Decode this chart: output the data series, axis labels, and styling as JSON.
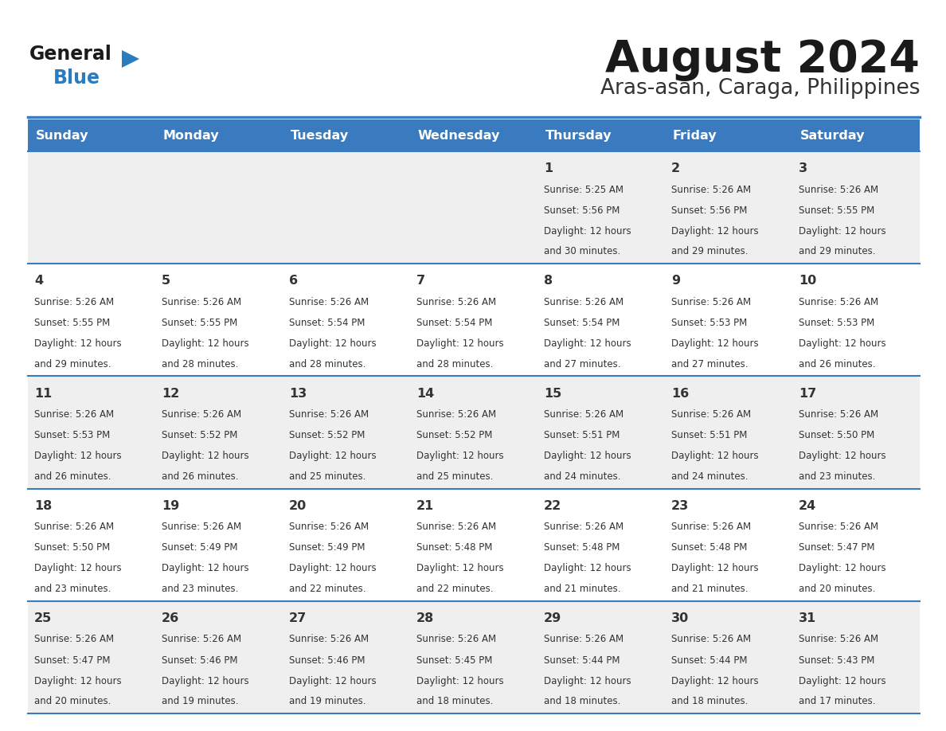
{
  "title": "August 2024",
  "subtitle": "Aras-asan, Caraga, Philippines",
  "header_bg": "#3a7bbf",
  "header_text_color": "#ffffff",
  "day_names": [
    "Sunday",
    "Monday",
    "Tuesday",
    "Wednesday",
    "Thursday",
    "Friday",
    "Saturday"
  ],
  "row_bg_odd": "#efefef",
  "row_bg_even": "#ffffff",
  "cell_text_color": "#333333",
  "day_num_color": "#333333",
  "line_color": "#3a7bbf",
  "title_color": "#1a1a1a",
  "subtitle_color": "#333333",
  "logo_general_color": "#1a1a1a",
  "logo_blue_color": "#2b7bbf",
  "logo_triangle_color": "#2b7bbf",
  "calendar_data": [
    [
      {
        "day": null,
        "sunrise": null,
        "sunset": null,
        "daylight": null
      },
      {
        "day": null,
        "sunrise": null,
        "sunset": null,
        "daylight": null
      },
      {
        "day": null,
        "sunrise": null,
        "sunset": null,
        "daylight": null
      },
      {
        "day": null,
        "sunrise": null,
        "sunset": null,
        "daylight": null
      },
      {
        "day": 1,
        "sunrise": "5:25 AM",
        "sunset": "5:56 PM",
        "daylight": "12 hours\nand 30 minutes."
      },
      {
        "day": 2,
        "sunrise": "5:26 AM",
        "sunset": "5:56 PM",
        "daylight": "12 hours\nand 29 minutes."
      },
      {
        "day": 3,
        "sunrise": "5:26 AM",
        "sunset": "5:55 PM",
        "daylight": "12 hours\nand 29 minutes."
      }
    ],
    [
      {
        "day": 4,
        "sunrise": "5:26 AM",
        "sunset": "5:55 PM",
        "daylight": "12 hours\nand 29 minutes."
      },
      {
        "day": 5,
        "sunrise": "5:26 AM",
        "sunset": "5:55 PM",
        "daylight": "12 hours\nand 28 minutes."
      },
      {
        "day": 6,
        "sunrise": "5:26 AM",
        "sunset": "5:54 PM",
        "daylight": "12 hours\nand 28 minutes."
      },
      {
        "day": 7,
        "sunrise": "5:26 AM",
        "sunset": "5:54 PM",
        "daylight": "12 hours\nand 28 minutes."
      },
      {
        "day": 8,
        "sunrise": "5:26 AM",
        "sunset": "5:54 PM",
        "daylight": "12 hours\nand 27 minutes."
      },
      {
        "day": 9,
        "sunrise": "5:26 AM",
        "sunset": "5:53 PM",
        "daylight": "12 hours\nand 27 minutes."
      },
      {
        "day": 10,
        "sunrise": "5:26 AM",
        "sunset": "5:53 PM",
        "daylight": "12 hours\nand 26 minutes."
      }
    ],
    [
      {
        "day": 11,
        "sunrise": "5:26 AM",
        "sunset": "5:53 PM",
        "daylight": "12 hours\nand 26 minutes."
      },
      {
        "day": 12,
        "sunrise": "5:26 AM",
        "sunset": "5:52 PM",
        "daylight": "12 hours\nand 26 minutes."
      },
      {
        "day": 13,
        "sunrise": "5:26 AM",
        "sunset": "5:52 PM",
        "daylight": "12 hours\nand 25 minutes."
      },
      {
        "day": 14,
        "sunrise": "5:26 AM",
        "sunset": "5:52 PM",
        "daylight": "12 hours\nand 25 minutes."
      },
      {
        "day": 15,
        "sunrise": "5:26 AM",
        "sunset": "5:51 PM",
        "daylight": "12 hours\nand 24 minutes."
      },
      {
        "day": 16,
        "sunrise": "5:26 AM",
        "sunset": "5:51 PM",
        "daylight": "12 hours\nand 24 minutes."
      },
      {
        "day": 17,
        "sunrise": "5:26 AM",
        "sunset": "5:50 PM",
        "daylight": "12 hours\nand 23 minutes."
      }
    ],
    [
      {
        "day": 18,
        "sunrise": "5:26 AM",
        "sunset": "5:50 PM",
        "daylight": "12 hours\nand 23 minutes."
      },
      {
        "day": 19,
        "sunrise": "5:26 AM",
        "sunset": "5:49 PM",
        "daylight": "12 hours\nand 23 minutes."
      },
      {
        "day": 20,
        "sunrise": "5:26 AM",
        "sunset": "5:49 PM",
        "daylight": "12 hours\nand 22 minutes."
      },
      {
        "day": 21,
        "sunrise": "5:26 AM",
        "sunset": "5:48 PM",
        "daylight": "12 hours\nand 22 minutes."
      },
      {
        "day": 22,
        "sunrise": "5:26 AM",
        "sunset": "5:48 PM",
        "daylight": "12 hours\nand 21 minutes."
      },
      {
        "day": 23,
        "sunrise": "5:26 AM",
        "sunset": "5:48 PM",
        "daylight": "12 hours\nand 21 minutes."
      },
      {
        "day": 24,
        "sunrise": "5:26 AM",
        "sunset": "5:47 PM",
        "daylight": "12 hours\nand 20 minutes."
      }
    ],
    [
      {
        "day": 25,
        "sunrise": "5:26 AM",
        "sunset": "5:47 PM",
        "daylight": "12 hours\nand 20 minutes."
      },
      {
        "day": 26,
        "sunrise": "5:26 AM",
        "sunset": "5:46 PM",
        "daylight": "12 hours\nand 19 minutes."
      },
      {
        "day": 27,
        "sunrise": "5:26 AM",
        "sunset": "5:46 PM",
        "daylight": "12 hours\nand 19 minutes."
      },
      {
        "day": 28,
        "sunrise": "5:26 AM",
        "sunset": "5:45 PM",
        "daylight": "12 hours\nand 18 minutes."
      },
      {
        "day": 29,
        "sunrise": "5:26 AM",
        "sunset": "5:44 PM",
        "daylight": "12 hours\nand 18 minutes."
      },
      {
        "day": 30,
        "sunrise": "5:26 AM",
        "sunset": "5:44 PM",
        "daylight": "12 hours\nand 18 minutes."
      },
      {
        "day": 31,
        "sunrise": "5:26 AM",
        "sunset": "5:43 PM",
        "daylight": "12 hours\nand 17 minutes."
      }
    ]
  ]
}
